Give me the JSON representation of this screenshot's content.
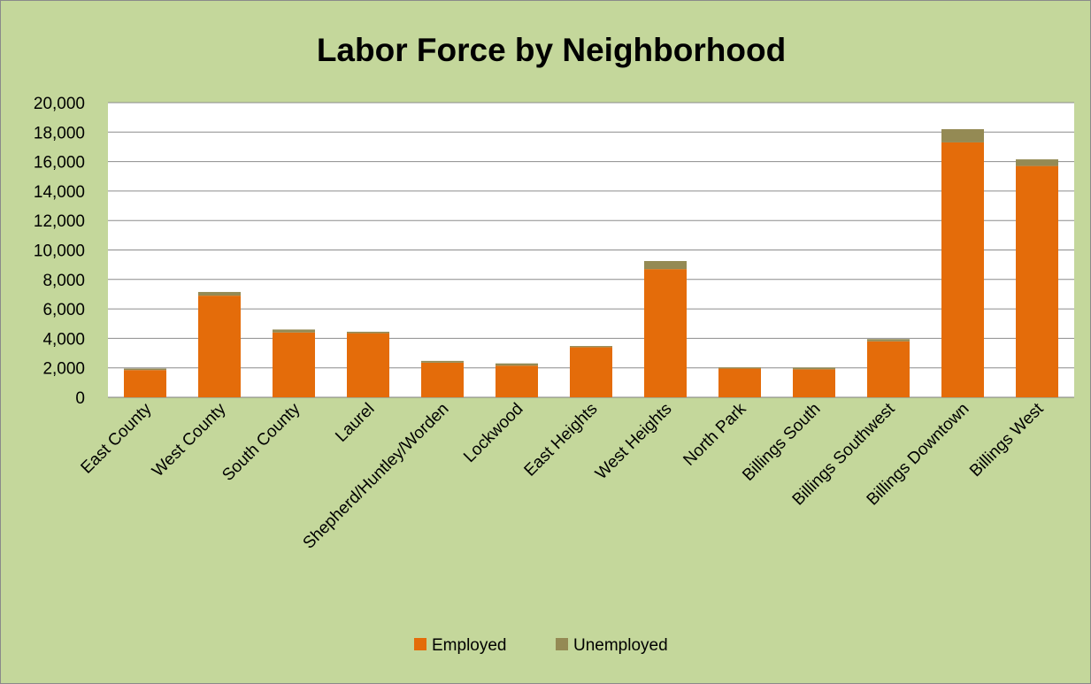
{
  "chart_data": {
    "type": "bar",
    "stacked": true,
    "title": "Labor Force by Neighborhood",
    "xlabel": "",
    "ylabel": "",
    "categories": [
      "East County",
      "West County",
      "South County",
      "Laurel",
      "Shepherd/Huntley/Worden",
      "Lockwood",
      "East Heights",
      "West Heights",
      "North Park",
      "Billings South",
      "Billings Southwest",
      "Billings Downtown",
      "Billings West"
    ],
    "series": [
      {
        "name": "Employed",
        "color": "#e46c0a",
        "values": [
          1850,
          6900,
          4400,
          4350,
          2350,
          2150,
          3400,
          8700,
          1950,
          1900,
          3800,
          17300,
          15700
        ]
      },
      {
        "name": "Unemployed",
        "color": "#948a54",
        "values": [
          100,
          250,
          200,
          100,
          120,
          150,
          80,
          550,
          80,
          120,
          150,
          900,
          450
        ]
      }
    ],
    "ylim": [
      0,
      20000
    ],
    "yticks": [
      0,
      2000,
      4000,
      6000,
      8000,
      10000,
      12000,
      14000,
      16000,
      18000,
      20000
    ],
    "ytick_labels": [
      "0",
      "2,000",
      "4,000",
      "6,000",
      "8,000",
      "10,000",
      "12,000",
      "14,000",
      "16,000",
      "18,000",
      "20,000"
    ],
    "grid": true,
    "legend_position": "bottom",
    "plot_background": "#ffffff",
    "chart_background": "#c4d79b"
  }
}
